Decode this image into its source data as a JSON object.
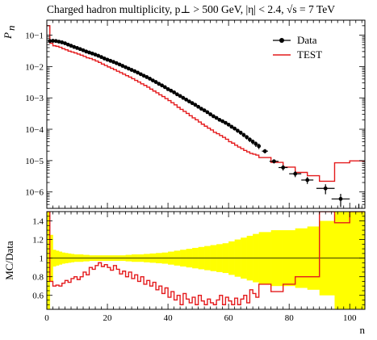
{
  "title": "Charged hadron multiplicity, p⊥ > 500 GeV, |η| < 2.4, √s = 7 TeV",
  "chart_data": [
    {
      "type": "line",
      "panel": "main",
      "ylabel": "P_n",
      "yscale": "log",
      "ylim": [
        3e-07,
        0.3
      ],
      "xlim": [
        0,
        105
      ],
      "y_tick_labels": [
        "10−6",
        "10−5",
        "10−4",
        "10−3",
        "10−2",
        "10−1"
      ],
      "legend_placement": "top-right",
      "series": [
        {
          "name": "Data",
          "style": "points-with-errors",
          "color": "#000000",
          "x": [
            1,
            2,
            3,
            4,
            5,
            6,
            7,
            8,
            9,
            10,
            11,
            12,
            13,
            14,
            15,
            16,
            17,
            18,
            19,
            20,
            21,
            22,
            23,
            24,
            25,
            26,
            27,
            28,
            29,
            30,
            31,
            32,
            33,
            34,
            35,
            36,
            37,
            38,
            39,
            40,
            41,
            42,
            43,
            44,
            45,
            46,
            47,
            48,
            49,
            50,
            51,
            52,
            53,
            54,
            55,
            56,
            57,
            58,
            59,
            60,
            61,
            62,
            63,
            64,
            65,
            66,
            67,
            68,
            69,
            70,
            72,
            75,
            78,
            82,
            86,
            92,
            97,
            103
          ],
          "y": [
            0.065,
            0.066,
            0.065,
            0.062,
            0.059,
            0.055,
            0.05,
            0.046,
            0.042,
            0.039,
            0.036,
            0.033,
            0.03,
            0.028,
            0.026,
            0.024,
            0.022,
            0.02,
            0.018,
            0.0165,
            0.0152,
            0.014,
            0.0128,
            0.0116,
            0.0105,
            0.0095,
            0.0086,
            0.0078,
            0.0071,
            0.0064,
            0.0057,
            0.0051,
            0.0046,
            0.0041,
            0.0036,
            0.0032,
            0.0028,
            0.0025,
            0.0022,
            0.0019,
            0.0017,
            0.0015,
            0.0013,
            0.00115,
            0.001,
            0.00088,
            0.00077,
            0.00068,
            0.0006,
            0.00052,
            0.00045,
            0.0004,
            0.00035,
            0.0003,
            0.00026,
            0.00023,
            0.0002,
            0.00018,
            0.00016,
            0.00014,
            0.00012,
            0.000105,
            9e-05,
            7.8e-05,
            6.6e-05,
            5.6e-05,
            4.7e-05,
            4e-05,
            3.4e-05,
            2.9e-05,
            2e-05,
            9.5e-06,
            6e-06,
            3.8e-06,
            2.4e-06,
            1.3e-06,
            6e-07,
            2.2e-07
          ],
          "xerr_half": [
            0.5,
            0.5,
            0.5,
            0.5,
            0.5,
            0.5,
            0.5,
            0.5,
            0.5,
            0.5,
            0.5,
            0.5,
            0.5,
            0.5,
            0.5,
            0.5,
            0.5,
            0.5,
            0.5,
            0.5,
            0.5,
            0.5,
            0.5,
            0.5,
            0.5,
            0.5,
            0.5,
            0.5,
            0.5,
            0.5,
            0.5,
            0.5,
            0.5,
            0.5,
            0.5,
            0.5,
            0.5,
            0.5,
            0.5,
            0.5,
            0.5,
            0.5,
            0.5,
            0.5,
            0.5,
            0.5,
            0.5,
            0.5,
            0.5,
            0.5,
            0.5,
            0.5,
            0.5,
            0.5,
            0.5,
            0.5,
            0.5,
            0.5,
            0.5,
            0.5,
            0.5,
            0.5,
            0.5,
            0.5,
            0.5,
            0.5,
            0.5,
            0.5,
            0.5,
            0.5,
            1,
            1.5,
            1.5,
            2,
            2,
            3,
            3,
            3
          ],
          "yerr_rel": [
            0.02,
            0.02,
            0.02,
            0.02,
            0.02,
            0.02,
            0.02,
            0.02,
            0.02,
            0.02,
            0.02,
            0.02,
            0.02,
            0.02,
            0.02,
            0.02,
            0.02,
            0.02,
            0.02,
            0.02,
            0.02,
            0.02,
            0.02,
            0.02,
            0.02,
            0.02,
            0.02,
            0.02,
            0.02,
            0.02,
            0.03,
            0.03,
            0.03,
            0.03,
            0.03,
            0.03,
            0.03,
            0.03,
            0.04,
            0.04,
            0.04,
            0.04,
            0.05,
            0.05,
            0.05,
            0.05,
            0.06,
            0.06,
            0.06,
            0.07,
            0.07,
            0.08,
            0.08,
            0.09,
            0.09,
            0.1,
            0.1,
            0.11,
            0.11,
            0.12,
            0.12,
            0.13,
            0.14,
            0.15,
            0.15,
            0.16,
            0.17,
            0.18,
            0.2,
            0.2,
            0.15,
            0.15,
            0.2,
            0.22,
            0.25,
            0.35,
            0.45,
            0.9
          ]
        },
        {
          "name": "TEST",
          "style": "step",
          "color": "#e41a1c",
          "edges": [
            0,
            1,
            2,
            3,
            4,
            5,
            6,
            7,
            8,
            9,
            10,
            11,
            12,
            13,
            14,
            15,
            16,
            17,
            18,
            19,
            20,
            21,
            22,
            23,
            24,
            25,
            26,
            27,
            28,
            29,
            30,
            31,
            32,
            33,
            34,
            35,
            36,
            37,
            38,
            39,
            40,
            41,
            42,
            43,
            44,
            45,
            46,
            47,
            48,
            49,
            50,
            51,
            52,
            53,
            54,
            55,
            56,
            57,
            58,
            59,
            60,
            61,
            62,
            63,
            64,
            65,
            66,
            67,
            68,
            69,
            70,
            74,
            78,
            82,
            86,
            90,
            95,
            100,
            105
          ],
          "values": [
            0.2,
            0.055,
            0.046,
            0.044,
            0.041,
            0.037,
            0.034,
            0.031,
            0.029,
            0.027,
            0.025,
            0.023,
            0.021,
            0.019,
            0.018,
            0.0165,
            0.015,
            0.0135,
            0.012,
            0.0108,
            0.0097,
            0.0088,
            0.0079,
            0.0071,
            0.0064,
            0.0057,
            0.0051,
            0.0046,
            0.0041,
            0.0036,
            0.0032,
            0.0028,
            0.0025,
            0.0022,
            0.0019,
            0.00165,
            0.00145,
            0.00125,
            0.0011,
            0.00095,
            0.00082,
            0.0007,
            0.0006,
            0.0005,
            0.00043,
            0.00037,
            0.00032,
            0.00027,
            0.00023,
            0.0002,
            0.00017,
            0.000145,
            0.000125,
            0.000108,
            9.5e-05,
            8e-05,
            7.2e-05,
            6.3e-05,
            5.5e-05,
            4.8e-05,
            4e-05,
            3.6e-05,
            3.1e-05,
            2.7e-05,
            2.4e-05,
            2.1e-05,
            1.9e-05,
            1.7e-05,
            1.6e-05,
            1.5e-05,
            1.25e-05,
            8.8e-06,
            6.2e-06,
            4.2e-06,
            3.3e-06,
            2.2e-06,
            8.5e-06,
            9.8e-06
          ]
        }
      ]
    },
    {
      "type": "line",
      "panel": "ratio",
      "ylabel": "MC/Data",
      "xlabel": "n",
      "ylim": [
        0.45,
        1.5
      ],
      "xlim": [
        0,
        105
      ],
      "y_tick_labels": [
        "0.6",
        "0.8",
        "1",
        "1.2",
        "1.4"
      ],
      "y_ticks": [
        0.6,
        0.8,
        1.0,
        1.2,
        1.4
      ],
      "x_tick_labels": [
        "0",
        "20",
        "40",
        "60",
        "80",
        "100"
      ],
      "x_ticks": [
        0,
        20,
        40,
        60,
        80,
        100
      ],
      "band": {
        "color": "#ffff00",
        "edges": [
          0,
          1,
          2,
          3,
          4,
          5,
          6,
          7,
          8,
          9,
          10,
          12,
          14,
          16,
          18,
          20,
          22,
          24,
          26,
          28,
          30,
          32,
          34,
          36,
          38,
          40,
          42,
          44,
          46,
          48,
          50,
          52,
          54,
          56,
          58,
          60,
          62,
          64,
          66,
          68,
          70,
          74,
          78,
          82,
          86,
          90,
          95,
          100,
          105
        ],
        "half_width": [
          1.0,
          0.25,
          0.09,
          0.08,
          0.07,
          0.06,
          0.055,
          0.05,
          0.045,
          0.04,
          0.04,
          0.035,
          0.03,
          0.03,
          0.03,
          0.03,
          0.03,
          0.03,
          0.035,
          0.04,
          0.04,
          0.045,
          0.05,
          0.055,
          0.06,
          0.07,
          0.08,
          0.09,
          0.1,
          0.11,
          0.12,
          0.13,
          0.14,
          0.15,
          0.16,
          0.18,
          0.2,
          0.22,
          0.24,
          0.26,
          0.28,
          0.3,
          0.3,
          0.32,
          0.34,
          0.4,
          0.7,
          0.9
        ]
      },
      "series": [
        {
          "name": "TEST",
          "style": "step",
          "color": "#e41a1c",
          "edges": [
            0,
            1,
            2,
            3,
            4,
            5,
            6,
            7,
            8,
            9,
            10,
            11,
            12,
            13,
            14,
            15,
            16,
            17,
            18,
            19,
            20,
            21,
            22,
            23,
            24,
            25,
            26,
            27,
            28,
            29,
            30,
            31,
            32,
            33,
            34,
            35,
            36,
            37,
            38,
            39,
            40,
            41,
            42,
            43,
            44,
            45,
            46,
            47,
            48,
            49,
            50,
            51,
            52,
            53,
            54,
            55,
            56,
            57,
            58,
            59,
            60,
            61,
            62,
            63,
            64,
            65,
            66,
            67,
            68,
            69,
            70,
            74,
            78,
            82,
            86,
            90,
            95,
            100,
            105
          ],
          "values": [
            1.5,
            0.75,
            0.7,
            0.71,
            0.7,
            0.73,
            0.76,
            0.74,
            0.78,
            0.8,
            0.77,
            0.8,
            0.85,
            0.82,
            0.9,
            0.88,
            0.92,
            0.95,
            0.91,
            0.93,
            0.9,
            0.87,
            0.92,
            0.88,
            0.83,
            0.86,
            0.8,
            0.85,
            0.78,
            0.82,
            0.75,
            0.8,
            0.72,
            0.76,
            0.7,
            0.74,
            0.66,
            0.7,
            0.62,
            0.68,
            0.58,
            0.64,
            0.55,
            0.6,
            0.5,
            0.62,
            0.56,
            0.52,
            0.58,
            0.5,
            0.6,
            0.54,
            0.5,
            0.56,
            0.52,
            0.5,
            0.55,
            0.6,
            0.5,
            0.58,
            0.54,
            0.5,
            0.57,
            0.5,
            0.56,
            0.6,
            0.52,
            0.66,
            0.62,
            0.58,
            0.72,
            0.64,
            0.72,
            0.8,
            0.8,
            1.5,
            1.38,
            1.5
          ]
        }
      ]
    }
  ],
  "legend": [
    {
      "label": "Data",
      "marker": "dot-line",
      "color": "#000000"
    },
    {
      "label": "TEST",
      "marker": "line",
      "color": "#e41a1c"
    }
  ]
}
